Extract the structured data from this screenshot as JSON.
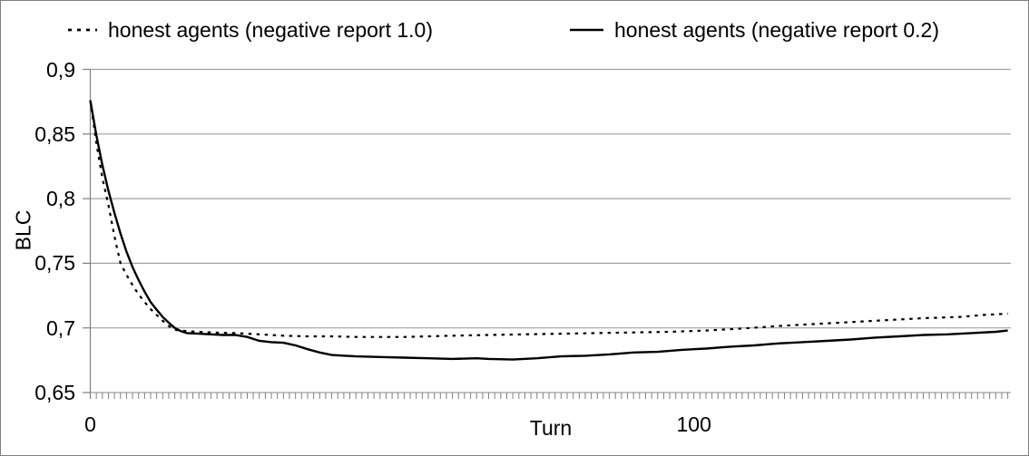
{
  "window": {
    "background": "#ffffff",
    "border_color": "#7f7f7f"
  },
  "legend": {
    "items": [
      {
        "label": "honest agents (negative report 1.0)",
        "marker": "dotted-line"
      },
      {
        "label": "honest agents (negative report 0.2)",
        "marker": "solid-line"
      }
    ]
  },
  "axes": {
    "x_title": "Turn",
    "y_title": "BLC"
  },
  "chart_data": {
    "type": "line",
    "title": "",
    "xlabel": "Turn",
    "ylabel": "BLC",
    "xlim": [
      0,
      152.5
    ],
    "ylim": [
      0.65,
      0.9
    ],
    "grid": true,
    "legend_position": "top",
    "x_ticks": [
      {
        "value": 0,
        "label": "0"
      },
      {
        "value": 100,
        "label": "100"
      }
    ],
    "x_minor_tick_step": 1,
    "y_ticks": [
      {
        "value": 0.9,
        "label": "0,9"
      },
      {
        "value": 0.85,
        "label": "0,85"
      },
      {
        "value": 0.8,
        "label": "0,8"
      },
      {
        "value": 0.75,
        "label": "0,75"
      },
      {
        "value": 0.7,
        "label": "0,7"
      },
      {
        "value": 0.65,
        "label": "0,65"
      }
    ],
    "colors": {
      "series": "#000000",
      "grid": "#a0a0a0",
      "axis": "#808080",
      "text": "#000000"
    },
    "series": [
      {
        "name": "honest agents (negative report 1.0)",
        "line_style": "dotted",
        "points": [
          [
            0,
            0.876
          ],
          [
            1,
            0.843
          ],
          [
            2,
            0.816
          ],
          [
            3,
            0.795
          ],
          [
            4,
            0.771
          ],
          [
            5,
            0.75
          ],
          [
            6,
            0.741
          ],
          [
            7,
            0.733
          ],
          [
            8,
            0.726
          ],
          [
            9,
            0.72
          ],
          [
            10,
            0.7145
          ],
          [
            11,
            0.71
          ],
          [
            12,
            0.7055
          ],
          [
            13,
            0.7015
          ],
          [
            14,
            0.6985
          ],
          [
            16,
            0.6975
          ],
          [
            18,
            0.697
          ],
          [
            20,
            0.6965
          ],
          [
            24,
            0.696
          ],
          [
            28,
            0.695
          ],
          [
            32,
            0.694
          ],
          [
            36,
            0.6935
          ],
          [
            40,
            0.6935
          ],
          [
            44,
            0.693
          ],
          [
            48,
            0.693
          ],
          [
            52,
            0.693
          ],
          [
            56,
            0.6935
          ],
          [
            60,
            0.694
          ],
          [
            66,
            0.6945
          ],
          [
            72,
            0.695
          ],
          [
            78,
            0.6955
          ],
          [
            84,
            0.696
          ],
          [
            90,
            0.6965
          ],
          [
            96,
            0.697
          ],
          [
            102,
            0.698
          ],
          [
            108,
            0.6995
          ],
          [
            114,
            0.7015
          ],
          [
            120,
            0.703
          ],
          [
            126,
            0.7045
          ],
          [
            132,
            0.706
          ],
          [
            138,
            0.7075
          ],
          [
            144,
            0.7085
          ],
          [
            148,
            0.71
          ],
          [
            152,
            0.711
          ]
        ]
      },
      {
        "name": "honest agents (negative report 0.2)",
        "line_style": "solid",
        "points": [
          [
            0,
            0.876
          ],
          [
            1,
            0.849
          ],
          [
            2,
            0.826
          ],
          [
            3,
            0.806
          ],
          [
            4,
            0.789
          ],
          [
            5,
            0.773
          ],
          [
            6,
            0.759
          ],
          [
            7,
            0.747
          ],
          [
            8,
            0.737
          ],
          [
            9,
            0.728
          ],
          [
            10,
            0.72
          ],
          [
            11,
            0.714
          ],
          [
            12,
            0.7085
          ],
          [
            13,
            0.704
          ],
          [
            14,
            0.7
          ],
          [
            15,
            0.6975
          ],
          [
            16,
            0.696
          ],
          [
            18,
            0.6955
          ],
          [
            20,
            0.695
          ],
          [
            22,
            0.6945
          ],
          [
            24,
            0.6945
          ],
          [
            26,
            0.693
          ],
          [
            28,
            0.69
          ],
          [
            30,
            0.689
          ],
          [
            32,
            0.6885
          ],
          [
            34,
            0.6865
          ],
          [
            36,
            0.6835
          ],
          [
            38,
            0.681
          ],
          [
            40,
            0.679
          ],
          [
            44,
            0.678
          ],
          [
            48,
            0.6775
          ],
          [
            52,
            0.677
          ],
          [
            56,
            0.6765
          ],
          [
            60,
            0.676
          ],
          [
            64,
            0.6765
          ],
          [
            66,
            0.676
          ],
          [
            70,
            0.6755
          ],
          [
            74,
            0.6765
          ],
          [
            78,
            0.678
          ],
          [
            82,
            0.6785
          ],
          [
            86,
            0.6795
          ],
          [
            90,
            0.681
          ],
          [
            94,
            0.6815
          ],
          [
            98,
            0.683
          ],
          [
            102,
            0.684
          ],
          [
            106,
            0.6855
          ],
          [
            110,
            0.6865
          ],
          [
            114,
            0.688
          ],
          [
            118,
            0.689
          ],
          [
            122,
            0.69
          ],
          [
            126,
            0.691
          ],
          [
            130,
            0.6925
          ],
          [
            134,
            0.6935
          ],
          [
            138,
            0.6945
          ],
          [
            142,
            0.695
          ],
          [
            146,
            0.696
          ],
          [
            150,
            0.697
          ],
          [
            152,
            0.698
          ]
        ]
      }
    ]
  }
}
